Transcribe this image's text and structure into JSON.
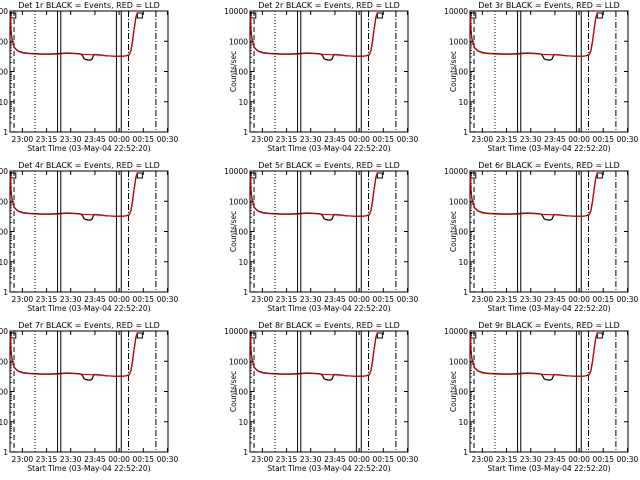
{
  "chart_data": {
    "type": "line",
    "layout": "3x3 grid",
    "common": {
      "xlabel": "Start Time (03-May-04 22:52:20)",
      "ylabel": "Counts/sec",
      "y_scale": "log",
      "ylim": [
        1,
        10000
      ],
      "y_ticks": [
        "1",
        "10",
        "100",
        "1000",
        "10000"
      ],
      "xlim_minutes_after_start": [
        0,
        98
      ],
      "x_ticks": [
        "23:00",
        "23:15",
        "23:30",
        "23:45",
        "00:00",
        "00:15",
        "00:30"
      ],
      "series": [
        {
          "name": "Events",
          "color": "#000000"
        },
        {
          "name": "LLD",
          "color": "#cc0000"
        }
      ],
      "events_curve": {
        "minutes": [
          0,
          0.5,
          1,
          2,
          3,
          5,
          8,
          12,
          16,
          20,
          25,
          30,
          35,
          40,
          44,
          45,
          46,
          48,
          50,
          51,
          52,
          55,
          60,
          65,
          70,
          72,
          74,
          75,
          76,
          77,
          78,
          79
        ],
        "counts": [
          8500,
          3000,
          1400,
          800,
          600,
          480,
          420,
          400,
          390,
          380,
          380,
          390,
          410,
          400,
          380,
          330,
          260,
          240,
          240,
          260,
          360,
          360,
          330,
          320,
          320,
          330,
          360,
          500,
          1000,
          2500,
          6000,
          9000
        ]
      },
      "lld_curve": {
        "minutes": [
          0,
          0.5,
          1,
          2,
          3,
          5,
          8,
          12,
          16,
          20,
          25,
          30,
          35,
          40,
          45,
          50,
          55,
          60,
          65,
          70,
          72,
          74,
          75,
          76,
          77,
          78,
          79
        ],
        "counts": [
          8000,
          2800,
          1300,
          780,
          580,
          470,
          410,
          390,
          380,
          370,
          370,
          380,
          400,
          390,
          370,
          360,
          350,
          330,
          320,
          320,
          330,
          360,
          480,
          950,
          2400,
          5800,
          8800
        ]
      },
      "vertical_markers_minutes": {
        "solid": [
          29.5,
          31.5,
          66,
          69
        ],
        "dotted": [
          15.5
        ],
        "dashdot": [
          73.5,
          90.5
        ],
        "dashed": [
          2.5
        ]
      }
    },
    "panels": [
      {
        "title": "Det 1r BLACK = Events, RED = LLD"
      },
      {
        "title": "Det 2r BLACK = Events, RED = LLD"
      },
      {
        "title": "Det 3r BLACK = Events, RED = LLD"
      },
      {
        "title": "Det 4r BLACK = Events, RED = LLD"
      },
      {
        "title": "Det 5r BLACK = Events, RED = LLD"
      },
      {
        "title": "Det 6r BLACK = Events, RED = LLD"
      },
      {
        "title": "Det 7r BLACK = Events, RED = LLD"
      },
      {
        "title": "Det 8r BLACK = Events, RED = LLD"
      },
      {
        "title": "Det 9r BLACK = Events, RED = LLD"
      }
    ]
  }
}
